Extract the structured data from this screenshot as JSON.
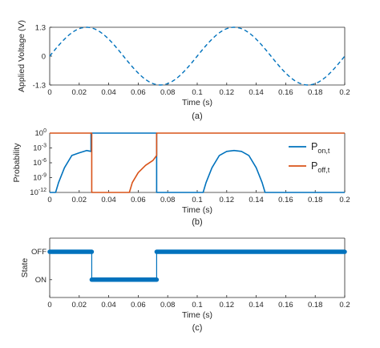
{
  "chart_data": [
    {
      "type": "line",
      "panel_label": "(a)",
      "xlabel": "Time (s)",
      "ylabel": "Applied Voltage (V)",
      "xlim": [
        0,
        0.2
      ],
      "ylim": [
        -1.3,
        1.3
      ],
      "x_ticks": [
        0,
        0.02,
        0.04,
        0.06,
        0.08,
        0.1,
        0.12,
        0.14,
        0.16,
        0.18,
        0.2
      ],
      "x_tick_labels": [
        "0",
        "0.02",
        "0.04",
        "0.06",
        "0.08",
        "0.1",
        "0.12",
        "0.14",
        "0.16",
        "0.18",
        "0.2"
      ],
      "y_ticks": [
        -1.3,
        0,
        1.3
      ],
      "y_tick_labels": [
        "-1.3",
        "0",
        "1.3"
      ],
      "grid": false,
      "series": [
        {
          "color": "#0072BD",
          "style": "dashed",
          "function": "sine",
          "amplitude": 1.3,
          "frequency_hz": 10
        }
      ]
    },
    {
      "type": "line",
      "panel_label": "(b)",
      "xlabel": "Time (s)",
      "ylabel": "Probability",
      "xlim": [
        0,
        0.2
      ],
      "ylim": [
        1e-12,
        1
      ],
      "y_scale": "log",
      "x_ticks": [
        0,
        0.02,
        0.04,
        0.06,
        0.08,
        0.1,
        0.12,
        0.14,
        0.16,
        0.18,
        0.2
      ],
      "x_tick_labels": [
        "0",
        "0.02",
        "0.04",
        "0.06",
        "0.08",
        "0.1",
        "0.12",
        "0.14",
        "0.16",
        "0.18",
        "0.2"
      ],
      "y_ticks": [
        1e-12,
        1e-09,
        1e-06,
        0.001,
        1
      ],
      "y_tick_labels": [
        {
          "base": "10",
          "exp": "-12"
        },
        {
          "base": "10",
          "exp": "-9"
        },
        {
          "base": "10",
          "exp": "-6"
        },
        {
          "base": "10",
          "exp": "-3"
        },
        {
          "base": "10",
          "exp": "0"
        }
      ],
      "grid": false,
      "legend_position": "right",
      "series": [
        {
          "name": "P",
          "subscript": "on,t",
          "color": "#0072BD",
          "x": [
            0,
            0.004,
            0.006,
            0.01,
            0.015,
            0.02,
            0.025,
            0.028,
            0.028,
            0.0725,
            0.0725,
            0.104,
            0.106,
            0.11,
            0.115,
            0.12,
            0.125,
            0.13,
            0.135,
            0.14,
            0.144,
            0.146,
            0.2
          ],
          "y": [
            1e-12,
            1e-12,
            1e-10,
            1e-07,
            3e-05,
            0.0001,
            0.0003,
            0.0002,
            1,
            1,
            1e-12,
            1e-12,
            1e-10,
            1e-07,
            3e-05,
            0.0002,
            0.0003,
            0.0002,
            3e-05,
            1e-07,
            1e-10,
            1e-12,
            1e-12
          ]
        },
        {
          "name": "P",
          "subscript": "off,t",
          "color": "#D95319",
          "x": [
            0,
            0.0285,
            0.0285,
            0.054,
            0.056,
            0.06,
            0.065,
            0.07,
            0.0725,
            0.0725,
            0.2
          ],
          "y": [
            1,
            1,
            1e-12,
            1e-12,
            1e-10,
            1e-08,
            3e-07,
            3e-06,
            3e-05,
            1,
            1
          ]
        }
      ]
    },
    {
      "type": "line",
      "panel_label": "(c)",
      "xlabel": "Time (s)",
      "ylabel": "State",
      "xlim": [
        0,
        0.2
      ],
      "x_ticks": [
        0,
        0.02,
        0.04,
        0.06,
        0.08,
        0.1,
        0.12,
        0.14,
        0.16,
        0.18,
        0.2
      ],
      "x_tick_labels": [
        "0",
        "0.02",
        "0.04",
        "0.06",
        "0.08",
        "0.1",
        "0.12",
        "0.14",
        "0.16",
        "0.18",
        "0.2"
      ],
      "categories": [
        "ON",
        "OFF"
      ],
      "y_tick_labels": [
        "OFF",
        "ON"
      ],
      "grid": false,
      "series": [
        {
          "color": "#0072BD",
          "x": [
            0,
            0.0285,
            0.0285,
            0.0725,
            0.0725,
            0.2
          ],
          "y": [
            "OFF",
            "OFF",
            "ON",
            "ON",
            "OFF",
            "OFF"
          ]
        }
      ]
    }
  ]
}
